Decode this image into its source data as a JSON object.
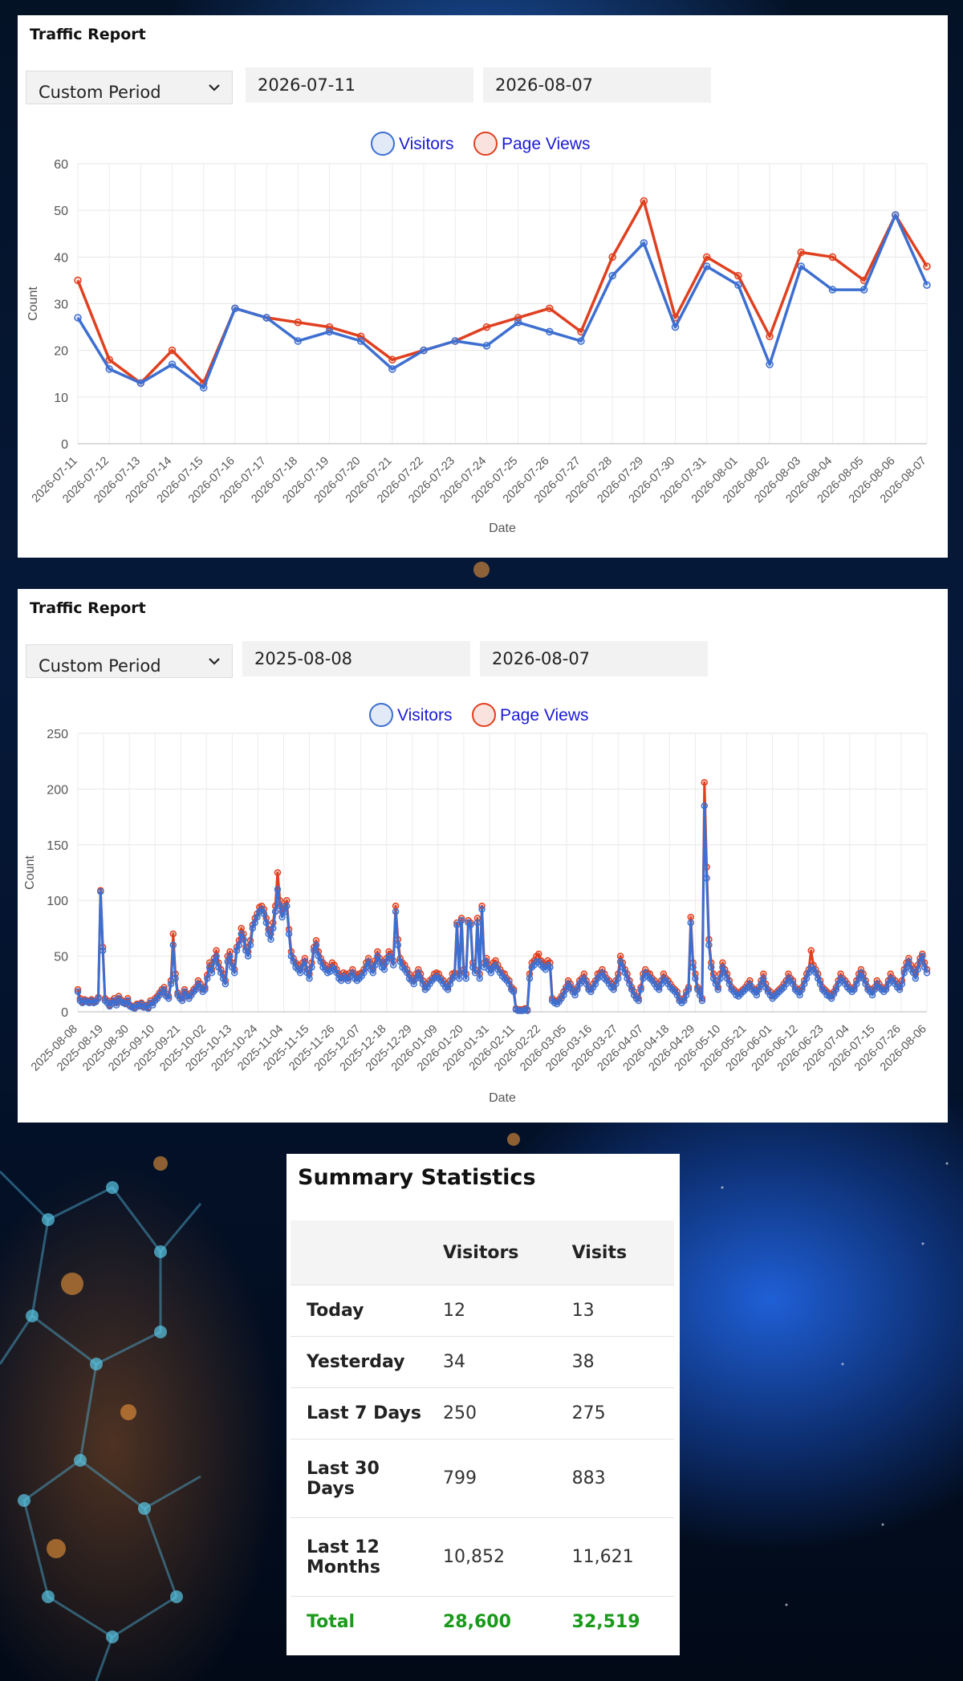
{
  "colors": {
    "visitors": "#3d6fd1",
    "page_views": "#e0401f",
    "total": "#1a9a1a"
  },
  "panels": [
    {
      "title": "Traffic Report",
      "period": "Custom Period",
      "start": "2026-07-11",
      "end": "2026-08-07",
      "chart_data": {
        "type": "line",
        "xlabel": "Date",
        "ylabel": "Count",
        "ylim": [
          0,
          60
        ],
        "yticks": [
          0,
          10,
          20,
          30,
          40,
          50,
          60
        ],
        "grid": true,
        "legend": "top-center",
        "categories": [
          "2026-07-11",
          "2026-07-12",
          "2026-07-13",
          "2026-07-14",
          "2026-07-15",
          "2026-07-16",
          "2026-07-17",
          "2026-07-18",
          "2026-07-19",
          "2026-07-20",
          "2026-07-21",
          "2026-07-22",
          "2026-07-23",
          "2026-07-24",
          "2026-07-25",
          "2026-07-26",
          "2026-07-27",
          "2026-07-28",
          "2026-07-29",
          "2026-07-30",
          "2026-07-31",
          "2026-08-01",
          "2026-08-02",
          "2026-08-03",
          "2026-08-04",
          "2026-08-05",
          "2026-08-06",
          "2026-08-07"
        ],
        "series": [
          {
            "name": "Visitors",
            "values": [
              27,
              16,
              13,
              17,
              12,
              29,
              27,
              22,
              24,
              22,
              16,
              20,
              22,
              21,
              26,
              24,
              22,
              36,
              43,
              25,
              38,
              34,
              17,
              38,
              33,
              33,
              49,
              34
            ]
          },
          {
            "name": "Page Views",
            "values": [
              35,
              18,
              13,
              20,
              13,
              29,
              27,
              26,
              25,
              23,
              18,
              20,
              22,
              25,
              27,
              29,
              24,
              40,
              52,
              27,
              40,
              36,
              23,
              41,
              40,
              35,
              49,
              38
            ]
          }
        ]
      }
    },
    {
      "title": "Traffic Report",
      "period": "Custom Period",
      "start": "2025-08-08",
      "end": "2026-08-07",
      "chart_data": {
        "type": "line",
        "xlabel": "Date",
        "ylabel": "Count",
        "ylim": [
          0,
          250
        ],
        "yticks": [
          0,
          50,
          100,
          150,
          200,
          250
        ],
        "grid": true,
        "legend": "top-center",
        "xticks": [
          "2025-08-08",
          "2025-08-19",
          "2025-08-30",
          "2025-09-10",
          "2025-09-21",
          "2025-10-02",
          "2025-10-13",
          "2025-10-24",
          "2025-11-04",
          "2025-11-15",
          "2025-11-26",
          "2025-12-07",
          "2025-12-18",
          "2025-12-29",
          "2026-01-09",
          "2026-01-20",
          "2026-01-31",
          "2026-02-11",
          "2026-02-22",
          "2026-03-05",
          "2026-03-16",
          "2026-03-27",
          "2026-04-07",
          "2026-04-18",
          "2026-04-29",
          "2026-05-10",
          "2026-05-21",
          "2026-06-01",
          "2026-06-12",
          "2026-06-23",
          "2026-07-04",
          "2026-07-15",
          "2026-07-26",
          "2026-08-06"
        ],
        "series": [
          {
            "name": "Visitors",
            "values": [
              18,
              10,
              8,
              10,
              9,
              8,
              10,
              8,
              9,
              12,
              108,
              55,
              10,
              8,
              5,
              8,
              10,
              6,
              12,
              9,
              8,
              7,
              10,
              5,
              4,
              3,
              6,
              5,
              7,
              4,
              5,
              3,
              8,
              6,
              10,
              12,
              15,
              18,
              20,
              14,
              12,
              25,
              60,
              30,
              15,
              12,
              10,
              18,
              14,
              12,
              15,
              18,
              20,
              25,
              22,
              18,
              20,
              30,
              40,
              35,
              45,
              50,
              40,
              35,
              30,
              25,
              45,
              50,
              40,
              35,
              55,
              60,
              70,
              65,
              55,
              50,
              60,
              75,
              80,
              85,
              90,
              92,
              88,
              80,
              70,
              65,
              75,
              90,
              110,
              95,
              85,
              90,
              95,
              70,
              50,
              45,
              40,
              38,
              35,
              40,
              45,
              35,
              30,
              40,
              55,
              60,
              50,
              45,
              40,
              38,
              35,
              36,
              40,
              38,
              35,
              30,
              28,
              32,
              30,
              28,
              32,
              35,
              30,
              28,
              30,
              32,
              35,
              40,
              45,
              38,
              35,
              42,
              50,
              45,
              40,
              38,
              45,
              50,
              48,
              42,
              90,
              60,
              45,
              40,
              38,
              35,
              30,
              28,
              25,
              30,
              35,
              30,
              25,
              20,
              22,
              25,
              28,
              30,
              32,
              30,
              28,
              25,
              22,
              20,
              25,
              30,
              32,
              78,
              30,
              82,
              35,
              30,
              80,
              78,
              40,
              35,
              80,
              30,
              92,
              40,
              45,
              38,
              35,
              40,
              42,
              38,
              35,
              32,
              30,
              28,
              25,
              20,
              18,
              2,
              1,
              1,
              1,
              2,
              1,
              30,
              40,
              42,
              45,
              45,
              42,
              40,
              38,
              42,
              40,
              10,
              8,
              7,
              9,
              12,
              15,
              20,
              25,
              22,
              18,
              15,
              20,
              25,
              28,
              30,
              25,
              20,
              18,
              22,
              25,
              30,
              32,
              35,
              30,
              28,
              25,
              22,
              20,
              25,
              30,
              45,
              40,
              35,
              30,
              25,
              20,
              15,
              12,
              10,
              20,
              30,
              35,
              32,
              30,
              28,
              25,
              22,
              20,
              25,
              30,
              28,
              25,
              22,
              20,
              18,
              15,
              10,
              8,
              10,
              15,
              20,
              80,
              40,
              30,
              20,
              15,
              10,
              185,
              120,
              60,
              40,
              30,
              25,
              20,
              30,
              40,
              35,
              30,
              25,
              20,
              18,
              15,
              14,
              16,
              18,
              20,
              22,
              25,
              20,
              18,
              15,
              20,
              25,
              30,
              22,
              18,
              15,
              12,
              14,
              16,
              18,
              20,
              22,
              25,
              30,
              28,
              25,
              20,
              18,
              15,
              20,
              25,
              30,
              35,
              40,
              38,
              35,
              30,
              25,
              20,
              18,
              15,
              14,
              12,
              16,
              20,
              25,
              30,
              28,
              25,
              22,
              20,
              18,
              20,
              25,
              30,
              35,
              30,
              25,
              20,
              18,
              15,
              20,
              25,
              22,
              20,
              18,
              20,
              25,
              30,
              28,
              25,
              22,
              20,
              25,
              35,
              40,
              45,
              38,
              35,
              30,
              38,
              45,
              50,
              40,
              35
            ]
          },
          {
            "name": "Page Views",
            "values": [
              20,
              12,
              9,
              11,
              10,
              9,
              11,
              9,
              10,
              13,
              109,
              58,
              12,
              10,
              6,
              10,
              12,
              8,
              14,
              11,
              9,
              8,
              12,
              6,
              5,
              4,
              7,
              6,
              8,
              5,
              6,
              4,
              10,
              8,
              12,
              14,
              17,
              20,
              22,
              16,
              14,
              28,
              70,
              34,
              17,
              14,
              12,
              20,
              16,
              14,
              17,
              20,
              22,
              28,
              25,
              20,
              22,
              33,
              44,
              38,
              48,
              55,
              44,
              38,
              34,
              28,
              50,
              54,
              44,
              38,
              58,
              64,
              75,
              70,
              58,
              54,
              64,
              78,
              84,
              88,
              94,
              95,
              92,
              84,
              74,
              70,
              80,
              95,
              125,
              100,
              90,
              95,
              100,
              74,
              54,
              48,
              44,
              42,
              38,
              44,
              48,
              38,
              34,
              44,
              58,
              64,
              54,
              48,
              44,
              42,
              38,
              40,
              44,
              42,
              38,
              34,
              30,
              35,
              34,
              30,
              35,
              38,
              34,
              30,
              34,
              35,
              38,
              44,
              48,
              42,
              38,
              46,
              54,
              48,
              44,
              42,
              48,
              54,
              52,
              46,
              95,
              65,
              48,
              44,
              42,
              38,
              34,
              30,
              28,
              34,
              38,
              34,
              28,
              22,
              25,
              28,
              30,
              34,
              35,
              34,
              30,
              28,
              25,
              22,
              28,
              34,
              35,
              80,
              34,
              84,
              38,
              34,
              82,
              80,
              44,
              38,
              84,
              34,
              95,
              44,
              48,
              42,
              38,
              44,
              46,
              42,
              38,
              35,
              34,
              30,
              28,
              22,
              20,
              3,
              2,
              2,
              2,
              3,
              2,
              34,
              44,
              46,
              50,
              52,
              46,
              44,
              42,
              46,
              44,
              12,
              10,
              9,
              11,
              14,
              18,
              22,
              28,
              25,
              20,
              18,
              22,
              28,
              30,
              34,
              28,
              22,
              20,
              25,
              28,
              34,
              35,
              38,
              34,
              30,
              28,
              25,
              22,
              28,
              34,
              50,
              44,
              38,
              34,
              28,
              22,
              18,
              14,
              12,
              22,
              34,
              38,
              35,
              34,
              30,
              28,
              25,
              22,
              28,
              34,
              30,
              28,
              25,
              22,
              20,
              18,
              12,
              10,
              12,
              18,
              22,
              85,
              44,
              34,
              22,
              18,
              12,
              206,
              130,
              65,
              44,
              34,
              28,
              22,
              34,
              44,
              38,
              34,
              28,
              22,
              20,
              18,
              16,
              18,
              20,
              22,
              25,
              28,
              22,
              20,
              18,
              22,
              28,
              34,
              25,
              20,
              18,
              14,
              16,
              18,
              20,
              22,
              25,
              28,
              34,
              30,
              28,
              22,
              20,
              18,
              22,
              28,
              34,
              38,
              55,
              42,
              38,
              34,
              28,
              22,
              20,
              18,
              16,
              14,
              18,
              22,
              28,
              34,
              30,
              28,
              25,
              22,
              20,
              22,
              28,
              34,
              38,
              34,
              28,
              22,
              20,
              18,
              22,
              28,
              25,
              22,
              20,
              22,
              28,
              34,
              30,
              28,
              25,
              22,
              28,
              38,
              44,
              48,
              42,
              38,
              34,
              42,
              48,
              52,
              44,
              38
            ]
          }
        ]
      }
    }
  ],
  "summary": {
    "title": "Summary Statistics",
    "headers": [
      "",
      "Visitors",
      "Visits"
    ],
    "rows": [
      {
        "label": "Today",
        "visitors": "12",
        "visits": "13"
      },
      {
        "label": "Yesterday",
        "visitors": "34",
        "visits": "38"
      },
      {
        "label": "Last 7 Days",
        "visitors": "250",
        "visits": "275"
      },
      {
        "label": "Last 30 Days",
        "visitors": "799",
        "visits": "883"
      },
      {
        "label": "Last 12 Months",
        "visitors": "10,852",
        "visits": "11,621"
      }
    ],
    "total": {
      "label": "Total",
      "visitors": "28,600",
      "visits": "32,519"
    }
  }
}
